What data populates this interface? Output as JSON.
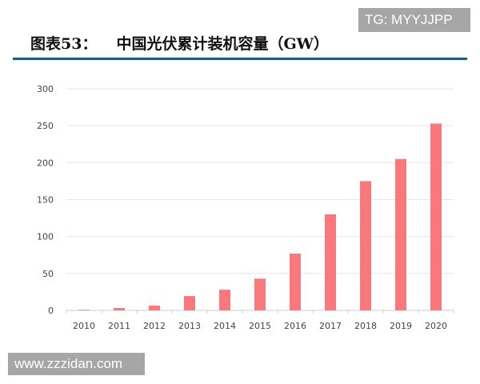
{
  "watermarks": {
    "top": "TG: MYYJJPP",
    "bottom": "www.zzzidan.com"
  },
  "header": {
    "figure_label": "图表53：",
    "title": "中国光伏累计装机容量（GW）"
  },
  "colors": {
    "bar": "#f8787b",
    "rule": "#1f5a78",
    "grid": "#e6e6e6"
  },
  "chart_data": {
    "type": "bar",
    "title": "中国光伏累计装机容量（GW）",
    "categories": [
      "2010",
      "2011",
      "2012",
      "2013",
      "2014",
      "2015",
      "2016",
      "2017",
      "2018",
      "2019",
      "2020"
    ],
    "values": [
      0.9,
      3.3,
      6.5,
      19.4,
      28,
      43,
      77,
      130,
      175,
      205,
      253
    ],
    "ylim": [
      0,
      300
    ],
    "yticks": [
      0,
      50,
      100,
      150,
      200,
      250,
      300
    ],
    "grid": true,
    "legend": "none"
  }
}
